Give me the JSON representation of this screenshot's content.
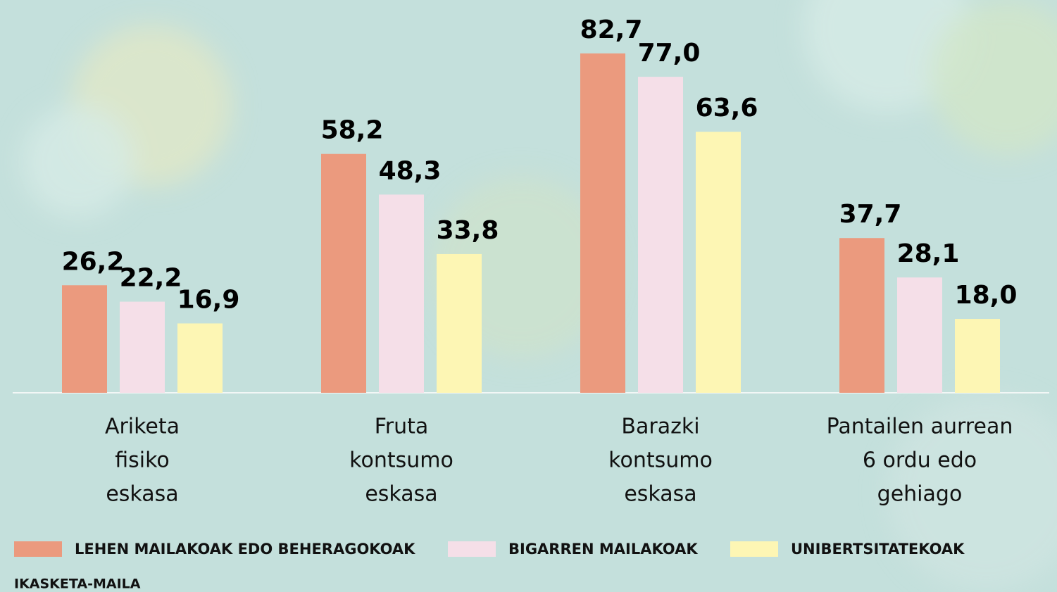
{
  "chart_data": {
    "type": "bar",
    "categories": [
      [
        "Ariketa",
        "fisiko",
        "eskasa"
      ],
      [
        "Fruta",
        "kontsumo",
        "eskasa"
      ],
      [
        "Barazki",
        "kontsumo",
        "eskasa"
      ],
      [
        "Pantailen aurrean",
        "6 ordu edo",
        "gehiago"
      ]
    ],
    "series": [
      {
        "name": "LEHEN MAILAKOAK EDO BEHERAGOKOAK",
        "color": "#eb9a7e",
        "values": [
          26.2,
          58.2,
          82.7,
          37.7
        ],
        "value_labels": [
          "26,2",
          "58,2",
          "82,7",
          "37,7"
        ]
      },
      {
        "name": "BIGARREN MAILAKOAK",
        "color": "#f5dfe8",
        "values": [
          22.2,
          48.3,
          77.0,
          28.1
        ],
        "value_labels": [
          "22,2",
          "48,3",
          "77,0",
          "28,1"
        ]
      },
      {
        "name": "UNIBERTSITATEKOAK",
        "color": "#fdf6b4",
        "values": [
          16.9,
          33.8,
          63.6,
          18.0
        ],
        "value_labels": [
          "16,9",
          "33,8",
          "63,6",
          "18,0"
        ]
      }
    ],
    "legend_title": "IKASKETA-MAILA",
    "ylim": [
      0,
      90
    ]
  }
}
